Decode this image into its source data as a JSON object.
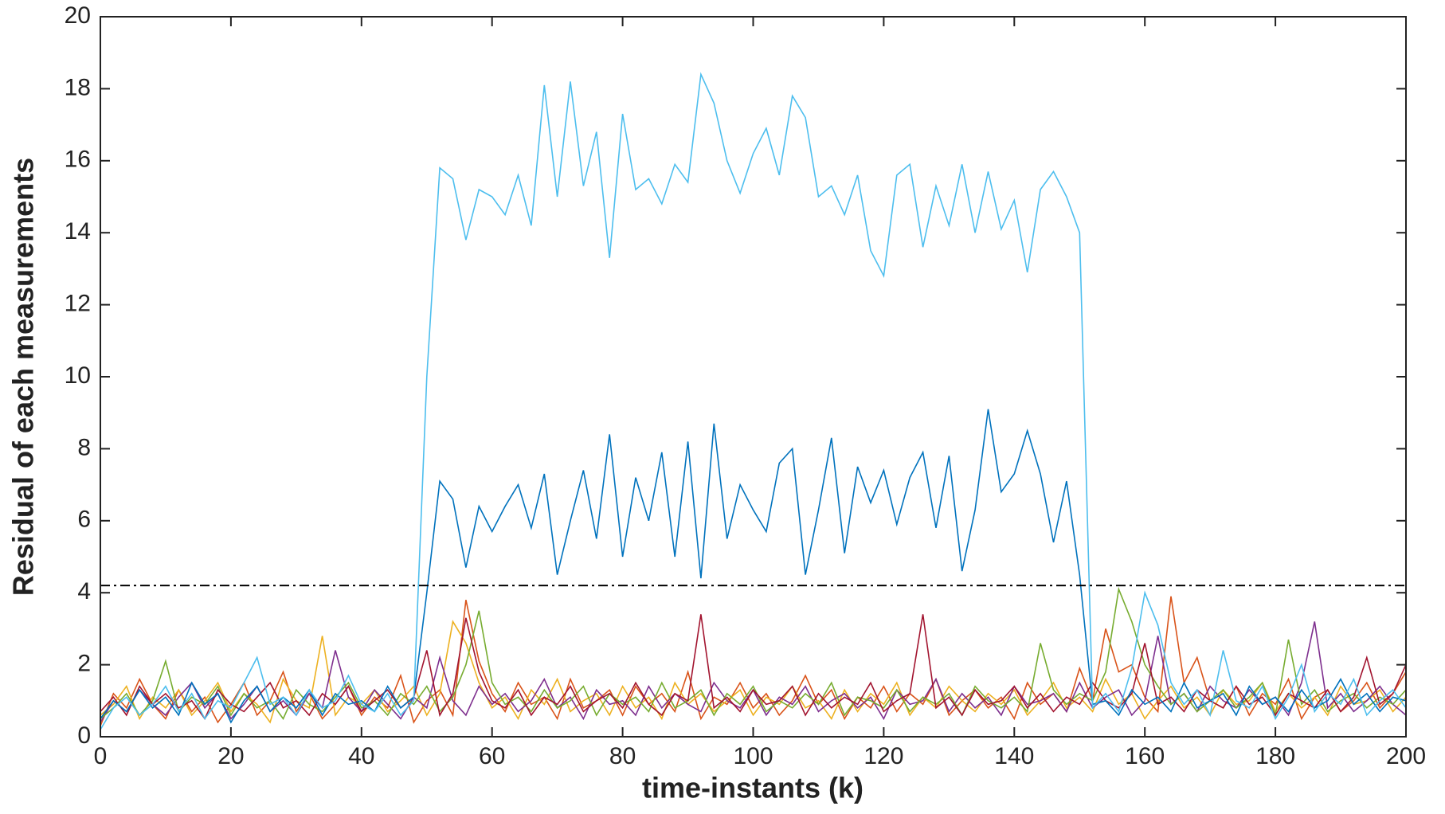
{
  "chart_data": {
    "type": "line",
    "x_label": "time-instants (k)",
    "y_label": "Residual of each measurements",
    "x": [
      0,
      2,
      4,
      6,
      8,
      10,
      12,
      14,
      16,
      18,
      20,
      22,
      24,
      26,
      28,
      30,
      32,
      34,
      36,
      38,
      40,
      42,
      44,
      46,
      48,
      50,
      52,
      54,
      56,
      58,
      60,
      62,
      64,
      66,
      68,
      70,
      72,
      74,
      76,
      78,
      80,
      82,
      84,
      86,
      88,
      90,
      92,
      94,
      96,
      98,
      100,
      102,
      104,
      106,
      108,
      110,
      112,
      114,
      116,
      118,
      120,
      122,
      124,
      126,
      128,
      130,
      132,
      134,
      136,
      138,
      140,
      142,
      144,
      146,
      148,
      150,
      152,
      154,
      156,
      158,
      160,
      162,
      164,
      166,
      168,
      170,
      172,
      174,
      176,
      178,
      180,
      182,
      184,
      186,
      188,
      190,
      192,
      194,
      196,
      198,
      200
    ],
    "series": [
      {
        "color": "#d95319",
        "values": [
          0.3,
          1.2,
          0.8,
          1.6,
          0.9,
          0.5,
          1.3,
          0.7,
          1.1,
          0.4,
          0.9,
          1.5,
          0.6,
          1.0,
          1.8,
          0.7,
          1.2,
          0.5,
          0.9,
          1.4,
          0.6,
          1.1,
          0.8,
          1.7,
          0.4,
          1.0,
          1.3,
          0.6,
          3.8,
          2.1,
          1.2,
          0.7,
          1.5,
          0.9,
          1.1,
          0.5,
          1.6,
          0.8,
          1.0,
          1.3,
          0.6,
          1.4,
          0.9,
          1.2,
          0.7,
          1.8,
          0.5,
          1.1,
          0.9,
          1.5,
          0.8,
          1.2,
          0.6,
          1.0,
          1.7,
          0.9,
          1.3,
          0.5,
          1.1,
          0.8,
          1.4,
          0.7,
          1.2,
          0.9,
          1.6,
          0.6,
          1.0,
          1.3,
          0.8,
          1.1,
          0.5,
          1.5,
          0.9,
          1.2,
          0.7,
          1.9,
          1.0,
          3.0,
          1.8,
          2.0,
          1.1,
          0.7,
          3.9,
          1.5,
          2.2,
          1.0,
          0.8,
          1.4,
          0.6,
          1.2,
          0.9,
          1.6,
          0.5,
          1.1,
          1.3,
          0.7,
          1.0,
          1.5,
          0.8,
          1.2,
          1.8
        ]
      },
      {
        "color": "#edb120",
        "values": [
          0.6,
          0.9,
          1.4,
          0.5,
          1.1,
          0.8,
          1.3,
          0.6,
          1.0,
          1.5,
          0.7,
          1.2,
          0.9,
          0.4,
          1.6,
          1.0,
          0.8,
          2.8,
          0.6,
          1.1,
          0.9,
          1.3,
          0.7,
          1.0,
          1.4,
          0.6,
          1.2,
          3.2,
          2.6,
          1.5,
          0.8,
          1.1,
          0.5,
          1.3,
          0.9,
          1.6,
          0.7,
          1.0,
          1.2,
          0.6,
          1.4,
          0.8,
          1.1,
          0.5,
          1.5,
          0.9,
          1.2,
          0.7,
          1.0,
          1.3,
          0.6,
          1.1,
          0.9,
          1.4,
          0.8,
          1.0,
          0.5,
          1.3,
          0.7,
          1.2,
          0.9,
          1.5,
          0.6,
          1.1,
          0.8,
          1.4,
          1.0,
          0.7,
          1.2,
          0.9,
          1.3,
          0.6,
          1.0,
          1.5,
          0.8,
          1.1,
          0.7,
          1.6,
          0.9,
          1.2,
          0.5,
          1.0,
          1.4,
          0.8,
          1.1,
          0.6,
          1.3,
          0.9,
          1.0,
          1.5,
          0.7,
          1.2,
          0.8,
          1.1,
          0.6,
          1.4,
          0.9,
          1.0,
          1.3,
          0.7,
          1.1
        ]
      },
      {
        "color": "#7e2f8e",
        "values": [
          0.4,
          1.0,
          0.7,
          1.3,
          0.9,
          0.6,
          1.1,
          1.5,
          0.8,
          1.2,
          0.5,
          0.9,
          1.4,
          0.7,
          1.0,
          0.6,
          1.2,
          0.8,
          2.4,
          1.1,
          0.7,
          1.3,
          0.9,
          0.5,
          1.1,
          0.8,
          2.2,
          1.0,
          0.6,
          1.4,
          0.9,
          1.2,
          0.7,
          1.0,
          1.6,
          0.8,
          1.1,
          0.5,
          1.3,
          0.9,
          1.0,
          0.6,
          1.4,
          0.8,
          1.2,
          0.9,
          0.7,
          1.5,
          1.0,
          0.8,
          1.3,
          0.6,
          1.1,
          0.9,
          1.4,
          0.7,
          1.0,
          1.2,
          0.8,
          1.1,
          0.5,
          1.3,
          0.9,
          1.0,
          1.6,
          0.7,
          1.2,
          0.8,
          1.1,
          0.6,
          1.4,
          0.9,
          1.0,
          1.2,
          0.7,
          1.5,
          0.8,
          1.1,
          1.3,
          0.6,
          1.0,
          2.8,
          0.9,
          1.2,
          0.7,
          1.4,
          1.0,
          0.8,
          1.3,
          0.9,
          1.1,
          0.6,
          1.5,
          3.2,
          0.8,
          1.2,
          0.7,
          1.0,
          1.4,
          0.9,
          0.6
        ]
      },
      {
        "color": "#77ac30",
        "values": [
          0.5,
          0.8,
          1.2,
          0.6,
          1.0,
          2.1,
          0.7,
          1.1,
          0.9,
          1.4,
          0.6,
          1.2,
          0.8,
          1.0,
          0.5,
          1.3,
          0.9,
          0.7,
          1.1,
          1.5,
          0.8,
          1.0,
          0.6,
          1.2,
          0.9,
          1.4,
          0.7,
          1.1,
          2.0,
          3.5,
          1.5,
          0.9,
          1.1,
          0.7,
          1.3,
          0.8,
          1.0,
          1.4,
          0.6,
          1.2,
          0.9,
          1.1,
          0.7,
          1.5,
          0.8,
          1.0,
          1.3,
          0.6,
          1.2,
          0.9,
          1.4,
          0.7,
          1.0,
          0.8,
          1.2,
          0.9,
          1.5,
          0.6,
          1.1,
          1.0,
          0.8,
          1.3,
          0.7,
          1.1,
          0.9,
          1.2,
          0.6,
          1.4,
          1.0,
          0.8,
          1.1,
          0.7,
          2.6,
          1.3,
          0.9,
          1.2,
          1.0,
          1.8,
          4.1,
          3.2,
          2.0,
          1.4,
          0.9,
          1.2,
          0.7,
          1.0,
          1.3,
          0.8,
          1.1,
          1.5,
          0.6,
          2.7,
          0.9,
          1.3,
          0.7,
          1.0,
          1.2,
          0.8,
          1.1,
          0.9,
          1.3
        ]
      },
      {
        "color": "#a2142f",
        "values": [
          0.7,
          1.1,
          0.6,
          1.4,
          0.9,
          1.2,
          0.8,
          1.0,
          0.5,
          1.3,
          0.9,
          0.7,
          1.1,
          1.5,
          0.8,
          1.0,
          0.6,
          1.2,
          0.9,
          1.4,
          0.7,
          1.0,
          1.3,
          0.8,
          1.1,
          2.4,
          0.6,
          1.2,
          3.3,
          1.8,
          1.0,
          0.8,
          1.3,
          0.6,
          1.1,
          0.9,
          1.4,
          0.7,
          1.0,
          1.2,
          0.8,
          1.5,
          0.9,
          0.6,
          1.2,
          1.0,
          3.4,
          0.8,
          1.1,
          0.7,
          1.3,
          0.9,
          1.0,
          1.4,
          0.6,
          1.2,
          0.8,
          1.1,
          0.9,
          1.5,
          0.7,
          1.0,
          1.2,
          3.4,
          0.8,
          1.1,
          0.6,
          1.3,
          0.9,
          1.0,
          1.4,
          0.8,
          1.2,
          0.7,
          1.1,
          0.9,
          1.5,
          1.0,
          0.8,
          1.2,
          2.6,
          0.9,
          1.1,
          0.7,
          1.3,
          1.0,
          0.8,
          1.4,
          0.9,
          1.1,
          0.6,
          1.2,
          1.0,
          0.8,
          1.3,
          0.7,
          1.1,
          2.2,
          0.9,
          1.2,
          2.0
        ]
      },
      {
        "color": "#0072bd",
        "values": [
          0.5,
          1.0,
          0.7,
          1.3,
          0.8,
          1.1,
          0.6,
          1.5,
          0.9,
          1.2,
          0.4,
          1.0,
          1.4,
          0.7,
          1.1,
          0.8,
          1.3,
          0.6,
          1.2,
          0.9,
          1.0,
          0.7,
          1.4,
          0.8,
          1.1,
          4.0,
          7.1,
          6.6,
          4.7,
          6.4,
          5.7,
          6.4,
          7.0,
          5.8,
          7.3,
          4.5,
          6.0,
          7.4,
          5.5,
          8.4,
          5.0,
          7.2,
          6.0,
          7.9,
          5.0,
          8.2,
          4.4,
          8.7,
          5.5,
          7.0,
          6.3,
          5.7,
          7.6,
          8.0,
          4.5,
          6.3,
          8.3,
          5.1,
          7.5,
          6.5,
          7.4,
          5.9,
          7.2,
          7.9,
          5.8,
          7.8,
          4.6,
          6.3,
          9.1,
          6.8,
          7.3,
          8.5,
          7.3,
          5.4,
          7.1,
          4.5,
          0.9,
          1.0,
          0.6,
          1.3,
          0.9,
          1.1,
          0.7,
          1.5,
          0.8,
          1.0,
          1.2,
          0.6,
          1.4,
          0.9,
          1.1,
          0.7,
          1.3,
          0.8,
          1.0,
          1.6,
          0.9,
          1.2,
          0.7,
          1.1,
          1.0
        ]
      },
      {
        "color": "#4dbeee",
        "values": [
          0.2,
          0.8,
          1.1,
          0.6,
          0.9,
          1.4,
          0.7,
          1.2,
          0.5,
          1.0,
          0.8,
          1.5,
          2.2,
          0.9,
          1.1,
          0.6,
          1.3,
          0.8,
          1.0,
          1.7,
          0.9,
          0.7,
          1.2,
          0.6,
          1.0,
          10,
          15.8,
          15.5,
          13.8,
          15.2,
          15.0,
          14.5,
          15.6,
          14.2,
          18.1,
          15.0,
          18.2,
          15.3,
          16.8,
          13.3,
          17.3,
          15.2,
          15.5,
          14.8,
          15.9,
          15.4,
          18.4,
          17.6,
          16.0,
          15.1,
          16.2,
          16.9,
          15.6,
          17.8,
          17.2,
          15.0,
          15.3,
          14.5,
          15.6,
          13.5,
          12.8,
          15.6,
          15.9,
          13.6,
          15.3,
          14.2,
          15.9,
          14.0,
          15.7,
          14.1,
          14.9,
          12.9,
          15.2,
          15.7,
          15.0,
          14.0,
          0.8,
          1.2,
          0.7,
          1.9,
          4.0,
          3.1,
          1.5,
          0.9,
          1.3,
          0.6,
          2.4,
          1.0,
          0.8,
          1.4,
          0.5,
          1.1,
          2.0,
          0.7,
          1.2,
          0.9,
          1.6,
          0.6,
          1.0,
          1.3,
          0.8
        ]
      }
    ],
    "threshold": 4.2,
    "threshold_color": "#000000",
    "xlim": [
      0,
      200
    ],
    "xticks": [
      0,
      20,
      40,
      60,
      80,
      100,
      120,
      140,
      160,
      180,
      200
    ],
    "ylim": [
      0,
      20
    ],
    "yticks": [
      0,
      2,
      4,
      6,
      8,
      10,
      12,
      14,
      16,
      18,
      20
    ]
  }
}
